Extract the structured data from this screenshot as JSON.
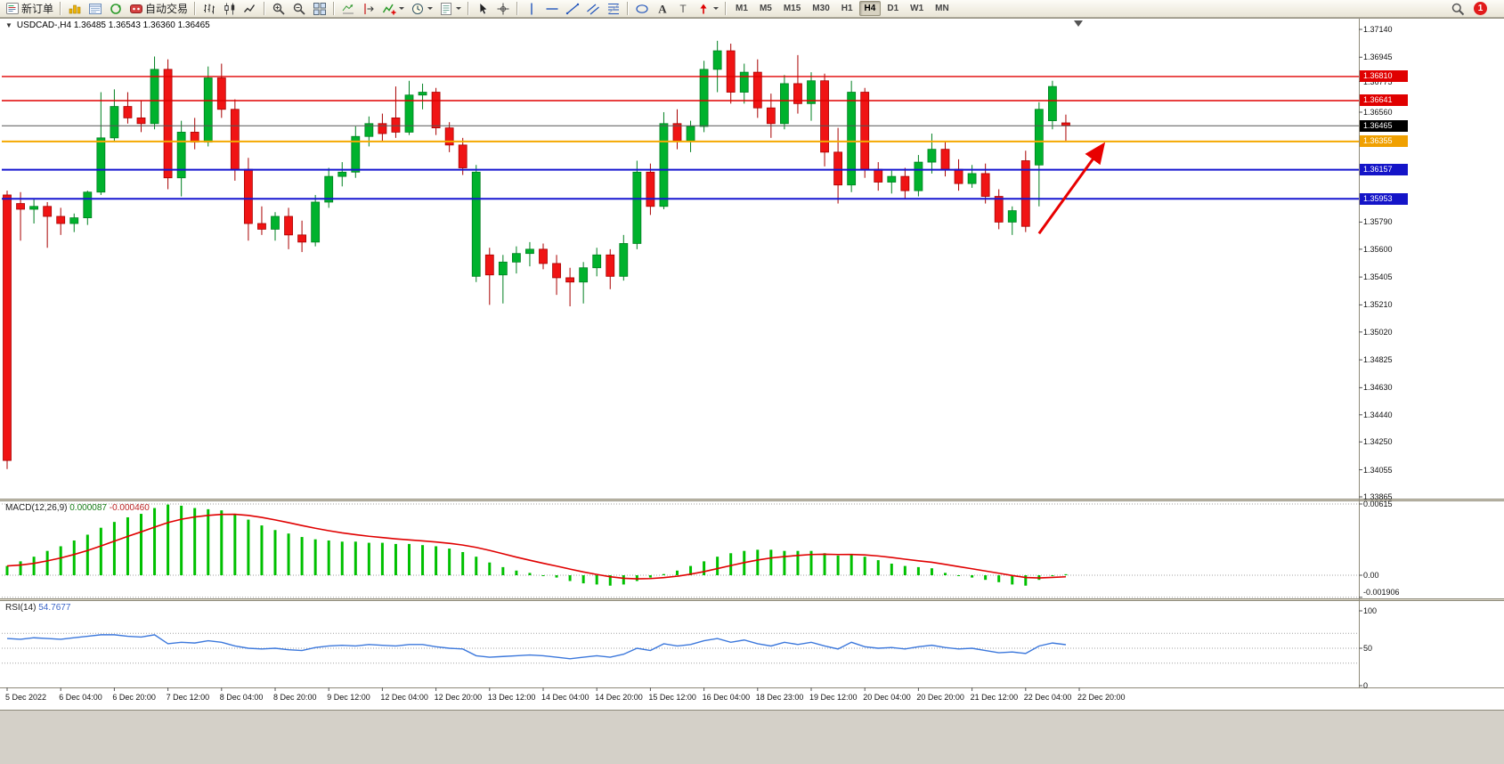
{
  "toolbar": {
    "new_order_label": "新订单",
    "autotrading_label": "自动交易",
    "timeframes": [
      "M1",
      "M5",
      "M15",
      "M30",
      "H1",
      "H4",
      "D1",
      "W1",
      "MN"
    ],
    "active_timeframe": "H4",
    "notification_count": "1",
    "items": [
      {
        "type": "button",
        "name": "new-order",
        "icon": "new-order",
        "label": "新订单"
      },
      {
        "type": "sep"
      },
      {
        "type": "button",
        "name": "charts-window",
        "icon": "chart-columns"
      },
      {
        "type": "button",
        "name": "market-watch",
        "icon": "list-window"
      },
      {
        "type": "button",
        "name": "refresh",
        "icon": "refresh-circle"
      },
      {
        "type": "button",
        "name": "autotrading",
        "icon": "autotrading",
        "label": "自动交易"
      },
      {
        "type": "sep"
      },
      {
        "type": "button",
        "name": "bar-chart-mode",
        "icon": "ohlc-bars"
      },
      {
        "type": "button",
        "name": "candlestick-mode",
        "icon": "candlesticks"
      },
      {
        "type": "button",
        "name": "line-chart-mode",
        "icon": "line-chart"
      },
      {
        "type": "sep"
      },
      {
        "type": "button",
        "name": "zoom-in",
        "icon": "zoom-in"
      },
      {
        "type": "button",
        "name": "zoom-out",
        "icon": "zoom-out"
      },
      {
        "type": "button",
        "name": "tile-windows",
        "icon": "tile-windows"
      },
      {
        "type": "sep"
      },
      {
        "type": "button",
        "name": "auto-scroll",
        "icon": "auto-scroll"
      },
      {
        "type": "button",
        "name": "chart-shift",
        "icon": "chart-shift"
      },
      {
        "type": "button",
        "name": "indicators-list",
        "icon": "indicators",
        "dropdown": true
      },
      {
        "type": "button",
        "name": "periods",
        "icon": "clock",
        "dropdown": true
      },
      {
        "type": "button",
        "name": "templates",
        "icon": "template",
        "dropdown": true
      },
      {
        "type": "sep"
      },
      {
        "type": "button",
        "name": "cursor-tool",
        "icon": "cursor"
      },
      {
        "type": "button",
        "name": "crosshair-tool",
        "icon": "crosshair"
      },
      {
        "type": "sep"
      },
      {
        "type": "button",
        "name": "vertical-line-tool",
        "icon": "vline"
      },
      {
        "type": "button",
        "name": "horizontal-line-tool",
        "icon": "hline"
      },
      {
        "type": "button",
        "name": "trendline-tool",
        "icon": "tline"
      },
      {
        "type": "button",
        "name": "channel-tool",
        "icon": "channel"
      },
      {
        "type": "button",
        "name": "fibonacci-tool",
        "icon": "fibo"
      },
      {
        "type": "sep"
      },
      {
        "type": "button",
        "name": "shapes-tool",
        "icon": "ellipse"
      },
      {
        "type": "button",
        "name": "text-tool",
        "icon": "text-a"
      },
      {
        "type": "button",
        "name": "label-tool",
        "icon": "text-t"
      },
      {
        "type": "button",
        "name": "arrows-tool",
        "icon": "arrow-marker",
        "dropdown": true
      },
      {
        "type": "sep"
      }
    ]
  },
  "chart": {
    "title": "USDCAD-,H4 1.36485 1.36543 1.36360 1.36465"
  },
  "indicators": {
    "macd": {
      "title": "MACD(12,26,9)",
      "main_value": "0.000087",
      "signal_value": "-0.000460"
    },
    "rsi": {
      "title": "RSI(14)",
      "value": "54.7677"
    }
  },
  "colors": {
    "up": "#00b22d",
    "up_border": "#008020",
    "down": "#f01414",
    "down_border": "#a80000",
    "macd_hist": "#00c000",
    "macd_signal": "#e00000",
    "rsi_line": "#3c78dc",
    "grid_dotted": "#a0a0a0",
    "axis_text": "#111111"
  },
  "chart_data": {
    "type": "candlestick",
    "symbol": "USDCAD",
    "timeframe": "H4",
    "ohlc_current": {
      "open": "1.36485",
      "high": "1.36543",
      "low": "1.36360",
      "close": "1.36465"
    },
    "price_axis": {
      "max": 1.3714,
      "min": 1.33865,
      "labels": [
        "1.37140",
        "1.36945",
        "1.36775",
        "1.36560",
        "1.35790",
        "1.35600",
        "1.35405",
        "1.35210",
        "1.35020",
        "1.34825",
        "1.34630",
        "1.34440",
        "1.34250",
        "1.34055",
        "1.33865"
      ]
    },
    "time_labels": [
      "5 Dec 2022",
      "6 Dec 04:00",
      "6 Dec 20:00",
      "7 Dec 12:00",
      "8 Dec 04:00",
      "8 Dec 20:00",
      "9 Dec 12:00",
      "12 Dec 04:00",
      "12 Dec 20:00",
      "13 Dec 12:00",
      "14 Dec 04:00",
      "14 Dec 20:00",
      "15 Dec 12:00",
      "16 Dec 04:00",
      "18 Dec 23:00",
      "19 Dec 12:00",
      "20 Dec 04:00",
      "20 Dec 20:00",
      "21 Dec 12:00",
      "22 Dec 04:00",
      "22 Dec 20:00"
    ],
    "hlines": [
      {
        "price": 1.3681,
        "color": "#e00000",
        "width": 1.4,
        "label": "1.36810",
        "badge": "#e00000"
      },
      {
        "price": 1.36641,
        "color": "#e00000",
        "width": 1.4,
        "label": "1.36641",
        "badge": "#e00000"
      },
      {
        "price": 1.36465,
        "color": "#555555",
        "width": 1,
        "label": "1.36465",
        "badge": "#000000",
        "role": "current-price-line"
      },
      {
        "price": 1.36355,
        "color": "#f5a800",
        "width": 2,
        "label": "1.36355",
        "badge": "#f0a000"
      },
      {
        "price": 1.36157,
        "color": "#1616d0",
        "width": 2,
        "label": "1.36157",
        "badge": "#1414c8"
      },
      {
        "price": 1.35953,
        "color": "#1616d0",
        "width": 2,
        "label": "1.35953",
        "badge": "#1414c8"
      }
    ],
    "arrow": {
      "from_bar": 77,
      "from_price": 1.3571,
      "to_bar": 81.7,
      "to_price": 1.3632,
      "color": "#e80000"
    },
    "candles": [
      [
        1.3598,
        1.3601,
        1.3406,
        1.3412
      ],
      [
        1.3592,
        1.36,
        1.3566,
        1.3588
      ],
      [
        1.3588,
        1.3595,
        1.3578,
        1.359
      ],
      [
        1.359,
        1.3593,
        1.3561,
        1.3583
      ],
      [
        1.3583,
        1.3589,
        1.357,
        1.3578
      ],
      [
        1.3578,
        1.3585,
        1.3572,
        1.3582
      ],
      [
        1.3582,
        1.3601,
        1.3577,
        1.36
      ],
      [
        1.36,
        1.367,
        1.3598,
        1.3638
      ],
      [
        1.3638,
        1.3672,
        1.3635,
        1.366
      ],
      [
        1.366,
        1.367,
        1.3648,
        1.3652
      ],
      [
        1.3652,
        1.3664,
        1.3642,
        1.3648
      ],
      [
        1.3648,
        1.3695,
        1.3644,
        1.3686
      ],
      [
        1.3686,
        1.3693,
        1.3602,
        1.361
      ],
      [
        1.361,
        1.365,
        1.3597,
        1.3642
      ],
      [
        1.3642,
        1.3652,
        1.363,
        1.3635
      ],
      [
        1.3635,
        1.3688,
        1.3632,
        1.368
      ],
      [
        1.368,
        1.369,
        1.3652,
        1.3658
      ],
      [
        1.3658,
        1.3665,
        1.3608,
        1.3616
      ],
      [
        1.3616,
        1.3624,
        1.3566,
        1.3578
      ],
      [
        1.3578,
        1.359,
        1.357,
        1.3574
      ],
      [
        1.3574,
        1.3586,
        1.3566,
        1.3583
      ],
      [
        1.3583,
        1.3589,
        1.356,
        1.357
      ],
      [
        1.357,
        1.358,
        1.3558,
        1.3565
      ],
      [
        1.3565,
        1.3598,
        1.3562,
        1.3593
      ],
      [
        1.3593,
        1.3617,
        1.3589,
        1.3611
      ],
      [
        1.3611,
        1.3621,
        1.3604,
        1.3614
      ],
      [
        1.3614,
        1.3646,
        1.361,
        1.3639
      ],
      [
        1.3639,
        1.3653,
        1.3632,
        1.3648
      ],
      [
        1.3648,
        1.3655,
        1.3636,
        1.3641
      ],
      [
        1.3652,
        1.3674,
        1.3638,
        1.3642
      ],
      [
        1.3642,
        1.3678,
        1.364,
        1.3668
      ],
      [
        1.3668,
        1.3676,
        1.3658,
        1.367
      ],
      [
        1.367,
        1.3673,
        1.364,
        1.3645
      ],
      [
        1.3645,
        1.3649,
        1.3628,
        1.3633
      ],
      [
        1.3633,
        1.3638,
        1.3612,
        1.3617
      ],
      [
        1.3541,
        1.3619,
        1.3537,
        1.3614
      ],
      [
        1.3556,
        1.3561,
        1.3521,
        1.3542
      ],
      [
        1.3542,
        1.3556,
        1.3522,
        1.3551
      ],
      [
        1.3551,
        1.3562,
        1.3543,
        1.3557
      ],
      [
        1.3557,
        1.3565,
        1.3548,
        1.356
      ],
      [
        1.356,
        1.3564,
        1.3546,
        1.355
      ],
      [
        1.355,
        1.3556,
        1.3528,
        1.354
      ],
      [
        1.354,
        1.3547,
        1.352,
        1.3537
      ],
      [
        1.3537,
        1.3551,
        1.3522,
        1.3547
      ],
      [
        1.3547,
        1.3561,
        1.3541,
        1.3556
      ],
      [
        1.3556,
        1.356,
        1.3532,
        1.3541
      ],
      [
        1.3541,
        1.357,
        1.3538,
        1.3564
      ],
      [
        1.3564,
        1.3622,
        1.356,
        1.3614
      ],
      [
        1.3614,
        1.362,
        1.3584,
        1.359
      ],
      [
        1.359,
        1.3656,
        1.3588,
        1.3648
      ],
      [
        1.3648,
        1.3658,
        1.363,
        1.3636
      ],
      [
        1.3636,
        1.365,
        1.3628,
        1.3646
      ],
      [
        1.3646,
        1.3692,
        1.3642,
        1.3686
      ],
      [
        1.3686,
        1.3706,
        1.367,
        1.3699
      ],
      [
        1.3699,
        1.3704,
        1.3662,
        1.367
      ],
      [
        1.367,
        1.369,
        1.3662,
        1.3684
      ],
      [
        1.3684,
        1.3693,
        1.3652,
        1.3659
      ],
      [
        1.3659,
        1.3669,
        1.3638,
        1.3648
      ],
      [
        1.3648,
        1.3682,
        1.3644,
        1.3676
      ],
      [
        1.3676,
        1.3696,
        1.3655,
        1.3662
      ],
      [
        1.3662,
        1.3684,
        1.365,
        1.3678
      ],
      [
        1.3678,
        1.3683,
        1.3618,
        1.3628
      ],
      [
        1.3628,
        1.3645,
        1.3592,
        1.3605
      ],
      [
        1.3605,
        1.3678,
        1.36,
        1.367
      ],
      [
        1.367,
        1.3673,
        1.361,
        1.3616
      ],
      [
        1.3616,
        1.3621,
        1.3601,
        1.3607
      ],
      [
        1.3607,
        1.3615,
        1.3599,
        1.3611
      ],
      [
        1.3611,
        1.3617,
        1.3595,
        1.3601
      ],
      [
        1.3601,
        1.3626,
        1.3597,
        1.3621
      ],
      [
        1.3621,
        1.3641,
        1.3613,
        1.363
      ],
      [
        1.363,
        1.3636,
        1.3611,
        1.3616
      ],
      [
        1.3616,
        1.3623,
        1.3601,
        1.3606
      ],
      [
        1.3606,
        1.3619,
        1.3603,
        1.3613
      ],
      [
        1.3613,
        1.362,
        1.3592,
        1.3597
      ],
      [
        1.3597,
        1.3602,
        1.3574,
        1.3579
      ],
      [
        1.3579,
        1.359,
        1.357,
        1.3587
      ],
      [
        1.3622,
        1.3629,
        1.3572,
        1.3576
      ],
      [
        1.3619,
        1.3663,
        1.359,
        1.3658
      ],
      [
        1.365,
        1.3678,
        1.3644,
        1.3674
      ],
      [
        1.36485,
        1.36543,
        1.3636,
        1.36465
      ]
    ],
    "macd": {
      "scale_labels": [
        "0.00615",
        "0.00",
        "-0.001906"
      ],
      "scale_values": [
        0.00615,
        0,
        -0.001906
      ],
      "values": [
        0.0008,
        0.0012,
        0.0016,
        0.0021,
        0.0025,
        0.003,
        0.0035,
        0.0041,
        0.0046,
        0.005,
        0.0053,
        0.0058,
        0.0061,
        0.006,
        0.0058,
        0.0057,
        0.0056,
        0.0053,
        0.0048,
        0.0043,
        0.0039,
        0.0036,
        0.0033,
        0.0031,
        0.003,
        0.0029,
        0.0029,
        0.0028,
        0.0028,
        0.0027,
        0.0027,
        0.0026,
        0.0025,
        0.0023,
        0.002,
        0.0016,
        0.0011,
        0.0007,
        0.0004,
        0.0002,
        0.0,
        -0.0002,
        -0.0005,
        -0.0007,
        -0.0008,
        -0.0009,
        -0.0008,
        -0.0005,
        -0.0002,
        0.0001,
        0.0004,
        0.0008,
        0.0012,
        0.0016,
        0.0019,
        0.0021,
        0.0022,
        0.0022,
        0.0021,
        0.0021,
        0.0021,
        0.0019,
        0.0017,
        0.0018,
        0.0016,
        0.0013,
        0.001,
        0.0008,
        0.0007,
        0.0006,
        0.0002,
        0.0,
        -0.0002,
        -0.0004,
        -0.0006,
        -0.0008,
        -0.0009,
        -0.0004,
        0.0,
        8.7e-05
      ]
    },
    "rsi": {
      "scale_labels": [
        "100",
        "50",
        "0"
      ],
      "scale_values": [
        100,
        50,
        0
      ],
      "levels": [
        70,
        50,
        30
      ],
      "values": [
        63,
        62,
        64,
        63,
        62,
        64,
        66,
        68,
        68,
        66,
        65,
        68,
        56,
        58,
        57,
        60,
        58,
        53,
        50,
        49,
        50,
        48,
        47,
        51,
        53,
        54,
        53,
        55,
        54,
        53,
        55,
        55,
        52,
        50,
        49,
        40,
        38,
        39,
        40,
        41,
        40,
        38,
        36,
        38,
        40,
        38,
        42,
        50,
        47,
        56,
        53,
        55,
        60,
        63,
        58,
        61,
        56,
        53,
        58,
        55,
        58,
        53,
        49,
        58,
        52,
        50,
        51,
        49,
        52,
        54,
        51,
        49,
        50,
        47,
        44,
        45,
        43,
        53,
        57,
        54.7677
      ]
    }
  }
}
